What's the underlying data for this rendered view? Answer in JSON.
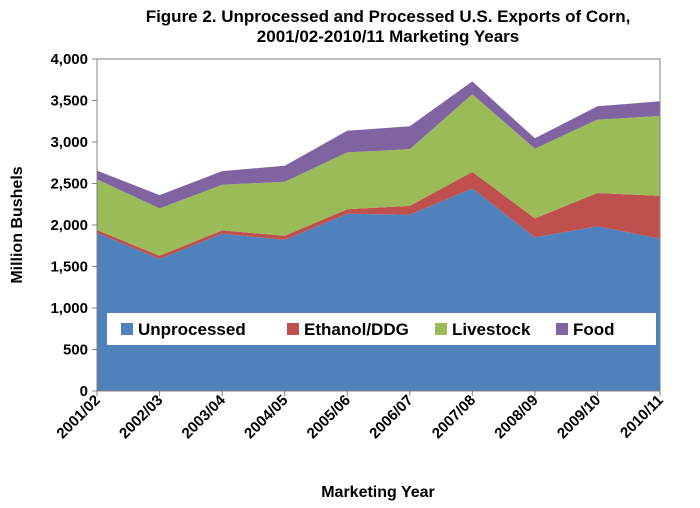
{
  "chart_data": {
    "type": "area",
    "stacked": true,
    "title": "Figure 2. Unprocessed and Processed U.S. Exports of Corn,",
    "subtitle": "2001/02-2010/11 Marketing Years",
    "xlabel": "Marketing Year",
    "ylabel": "Million Bushels",
    "ylim": [
      0,
      4000
    ],
    "yticks": [
      0,
      500,
      1000,
      1500,
      2000,
      2500,
      3000,
      3500,
      4000
    ],
    "ytick_labels": [
      "0",
      "500",
      "1,000",
      "1,500",
      "2,000",
      "2,500",
      "3,000",
      "3,500",
      "4,000"
    ],
    "categories": [
      "2001/02",
      "2002/03",
      "2003/04",
      "2004/05",
      "2005/06",
      "2006/07",
      "2007/08",
      "2008/09",
      "2009/10",
      "2010/11"
    ],
    "series": [
      {
        "name": "Unprocessed",
        "color": "#4F81BD",
        "values": [
          1905,
          1590,
          1895,
          1820,
          2135,
          2125,
          2440,
          1850,
          1985,
          1835
        ]
      },
      {
        "name": "Ethanol/DDG",
        "color": "#C0504D",
        "values": [
          35,
          40,
          40,
          50,
          55,
          105,
          200,
          230,
          400,
          515
        ]
      },
      {
        "name": "Livestock",
        "color": "#9BBB59",
        "values": [
          610,
          570,
          550,
          650,
          685,
          685,
          935,
          840,
          885,
          965
        ]
      },
      {
        "name": "Food",
        "color": "#8064A2",
        "values": [
          105,
          160,
          165,
          195,
          260,
          275,
          155,
          125,
          160,
          175
        ]
      }
    ],
    "grid": false,
    "legend_position": "inside-bottom"
  }
}
